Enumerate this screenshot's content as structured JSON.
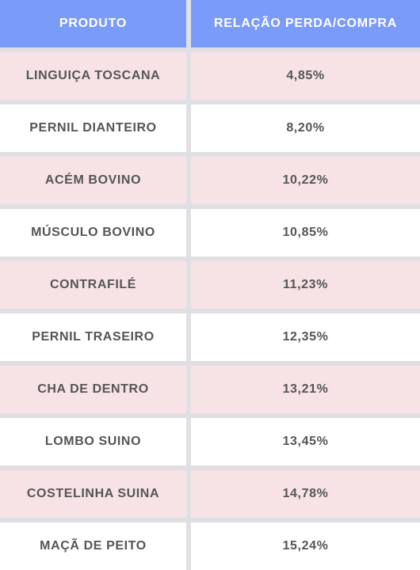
{
  "table": {
    "headers": [
      "PRODUTO",
      "RELAÇÃO PERDA/COMPRA"
    ],
    "rows": [
      {
        "produto": "LINGUIÇA TOSCANA",
        "relacao": "4,85%"
      },
      {
        "produto": "PERNIL DIANTEIRO",
        "relacao": "8,20%"
      },
      {
        "produto": "ACÉM BOVINO",
        "relacao": "10,22%"
      },
      {
        "produto": "MÚSCULO BOVINO",
        "relacao": "10,85%"
      },
      {
        "produto": "CONTRAFILÉ",
        "relacao": "11,23%"
      },
      {
        "produto": "PERNIL TRASEIRO",
        "relacao": "12,35%"
      },
      {
        "produto": "CHA DE DENTRO",
        "relacao": "13,21%"
      },
      {
        "produto": "LOMBO SUINO",
        "relacao": "13,45%"
      },
      {
        "produto": "COSTELINHA SUINA",
        "relacao": "14,78%"
      },
      {
        "produto": "MAÇÃ DE PEITO",
        "relacao": "15,24%"
      }
    ]
  },
  "colors": {
    "header_bg": "#7b9bf9",
    "row_alt": "#f7e3e6",
    "row_plain": "#ffffff",
    "text": "#555555"
  }
}
